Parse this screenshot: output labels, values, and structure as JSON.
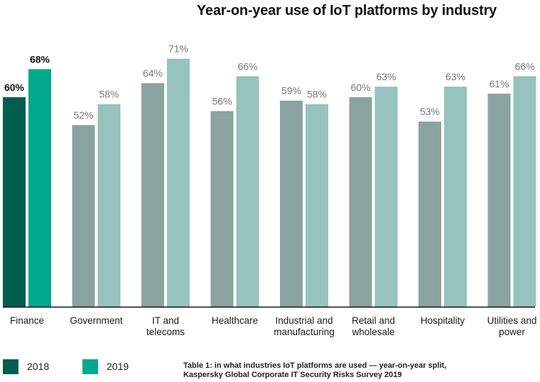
{
  "chart_data": {
    "type": "bar",
    "title": "Year-on-year use of IoT platforms by industry",
    "xlabel": "",
    "ylabel": "",
    "ylim": [
      0,
      100
    ],
    "grid": false,
    "categories": [
      "Finance",
      "Government",
      "IT and\ntelecoms",
      "Healthcare",
      "Industrial and\nmanufacturing",
      "Retail and\nwholesale",
      "Hospitality",
      "Utilities and\npower"
    ],
    "series": [
      {
        "name": "2018",
        "values": [
          60,
          52,
          64,
          56,
          59,
          60,
          53,
          61
        ]
      },
      {
        "name": "2019",
        "values": [
          68,
          58,
          71,
          66,
          58,
          63,
          63,
          66
        ]
      }
    ],
    "value_labels": {
      "2018": [
        "60%",
        "52%",
        "64%",
        "56%",
        "59%",
        "60%",
        "53%",
        "61%"
      ],
      "2019": [
        "68%",
        "58%",
        "71%",
        "66%",
        "58%",
        "63%",
        "63%",
        "66%"
      ]
    },
    "highlighted_category": "Finance",
    "legend": {
      "placement": "bottom-left",
      "entries": [
        "2018",
        "2019"
      ]
    },
    "caption": "Table 1: in what industries IoT platforms are used — year-on-year split,\nKaspersky Global Corporate IT Security Risks Survey 2019"
  },
  "colors": {
    "highlight_2018": "#005E4F",
    "highlight_2019": "#00A88E",
    "muted_2018": "#8BA39F",
    "muted_2019": "#96C3BC",
    "highlight_label": "#111111",
    "muted_label": "#777777",
    "axis": "#111111"
  }
}
